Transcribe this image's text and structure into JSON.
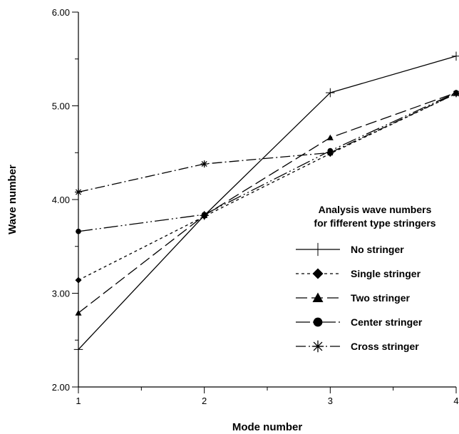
{
  "chart_data": {
    "type": "line",
    "title": "",
    "xlabel": "Mode number",
    "ylabel": "Wave number",
    "x": [
      1,
      2,
      3,
      4
    ],
    "xlim": [
      1,
      4
    ],
    "ylim": [
      2.0,
      6.0
    ],
    "x_ticks": [
      "1",
      "2",
      "3",
      "4"
    ],
    "y_ticks": [
      "2.00",
      "3.00",
      "4.00",
      "5.00",
      "6.00"
    ],
    "grid": false,
    "legend": {
      "title_lines": [
        "Analysis wave numbers",
        "for fifferent type stringers"
      ],
      "placement": "center-right"
    },
    "series": [
      {
        "name": "No stringer",
        "values": [
          2.4,
          3.83,
          5.14,
          5.53
        ],
        "marker": "plus",
        "dash": "solid"
      },
      {
        "name": "Single stringer",
        "values": [
          3.14,
          3.82,
          4.49,
          5.13
        ],
        "marker": "diamond",
        "dash": "short-dash"
      },
      {
        "name": "Two stringer",
        "values": [
          2.79,
          3.83,
          4.66,
          5.14
        ],
        "marker": "triangle",
        "dash": "long-dash"
      },
      {
        "name": "Center stringer",
        "values": [
          3.66,
          3.84,
          4.52,
          5.14
        ],
        "marker": "circle",
        "dash": "dash-dot-dot"
      },
      {
        "name": "Cross stringer",
        "values": [
          4.08,
          4.38,
          4.5,
          5.13
        ],
        "marker": "star",
        "dash": "dash-dot"
      }
    ]
  }
}
